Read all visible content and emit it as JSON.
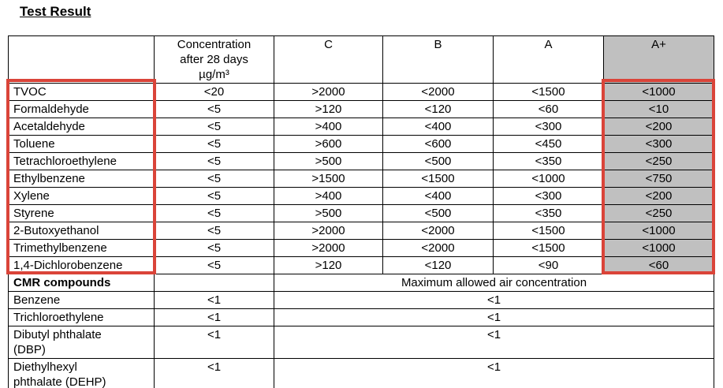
{
  "title": "Test Result",
  "table": {
    "header": {
      "compound": "",
      "concentration_lines": [
        "Concentration",
        "after 28 days",
        "µg/m³"
      ],
      "class_c": "C",
      "class_b": "B",
      "class_a": "A",
      "class_a_plus": "A+"
    },
    "voc_rows": [
      {
        "name": "TVOC",
        "concentration": "<20",
        "c": ">2000",
        "b": "<2000",
        "a": "<1500",
        "a_plus": "<1000"
      },
      {
        "name": "Formaldehyde",
        "concentration": "<5",
        "c": ">120",
        "b": "<120",
        "a": "<60",
        "a_plus": "<10"
      },
      {
        "name": "Acetaldehyde",
        "concentration": "<5",
        "c": ">400",
        "b": "<400",
        "a": "<300",
        "a_plus": "<200"
      },
      {
        "name": "Toluene",
        "concentration": "<5",
        "c": ">600",
        "b": "<600",
        "a": "<450",
        "a_plus": "<300"
      },
      {
        "name": "Tetrachloroethylene",
        "concentration": "<5",
        "c": ">500",
        "b": "<500",
        "a": "<350",
        "a_plus": "<250"
      },
      {
        "name": "Ethylbenzene",
        "concentration": "<5",
        "c": ">1500",
        "b": "<1500",
        "a": "<1000",
        "a_plus": "<750"
      },
      {
        "name": "Xylene",
        "concentration": "<5",
        "c": ">400",
        "b": "<400",
        "a": "<300",
        "a_plus": "<200"
      },
      {
        "name": "Styrene",
        "concentration": "<5",
        "c": ">500",
        "b": "<500",
        "a": "<350",
        "a_plus": "<250"
      },
      {
        "name": "2-Butoxyethanol",
        "concentration": "<5",
        "c": ">2000",
        "b": "<2000",
        "a": "<1500",
        "a_plus": "<1000"
      },
      {
        "name": "Trimethylbenzene",
        "concentration": "<5",
        "c": ">2000",
        "b": "<2000",
        "a": "<1500",
        "a_plus": "<1000"
      },
      {
        "name": "1,4-Dichlorobenzene",
        "concentration": "<5",
        "c": ">120",
        "b": "<120",
        "a": "<90",
        "a_plus": "<60"
      }
    ],
    "cmr_section": {
      "title": "CMR compounds",
      "concentration": "",
      "merged_header": "Maximum allowed air concentration",
      "rows": [
        {
          "name": "Benzene",
          "concentration": "<1",
          "max_allowed": "<1"
        },
        {
          "name": "Trichloroethylene",
          "concentration": "<1",
          "max_allowed": "<1"
        },
        {
          "name": "Dibutyl phthalate (DBP)",
          "concentration": "<1",
          "max_allowed": "<1"
        },
        {
          "name": "Diethylhexyl phthalate (DEHP)",
          "concentration": "<1",
          "max_allowed": "<1"
        }
      ]
    }
  },
  "annotations": {
    "highlighted_column": "A+",
    "red_box_left_target": "compound-names",
    "red_box_right_target": "a-plus-values"
  },
  "colors": {
    "highlight_fill": "#c0c0c0",
    "annotation_red": "#da4439",
    "table_border": "#000000"
  }
}
